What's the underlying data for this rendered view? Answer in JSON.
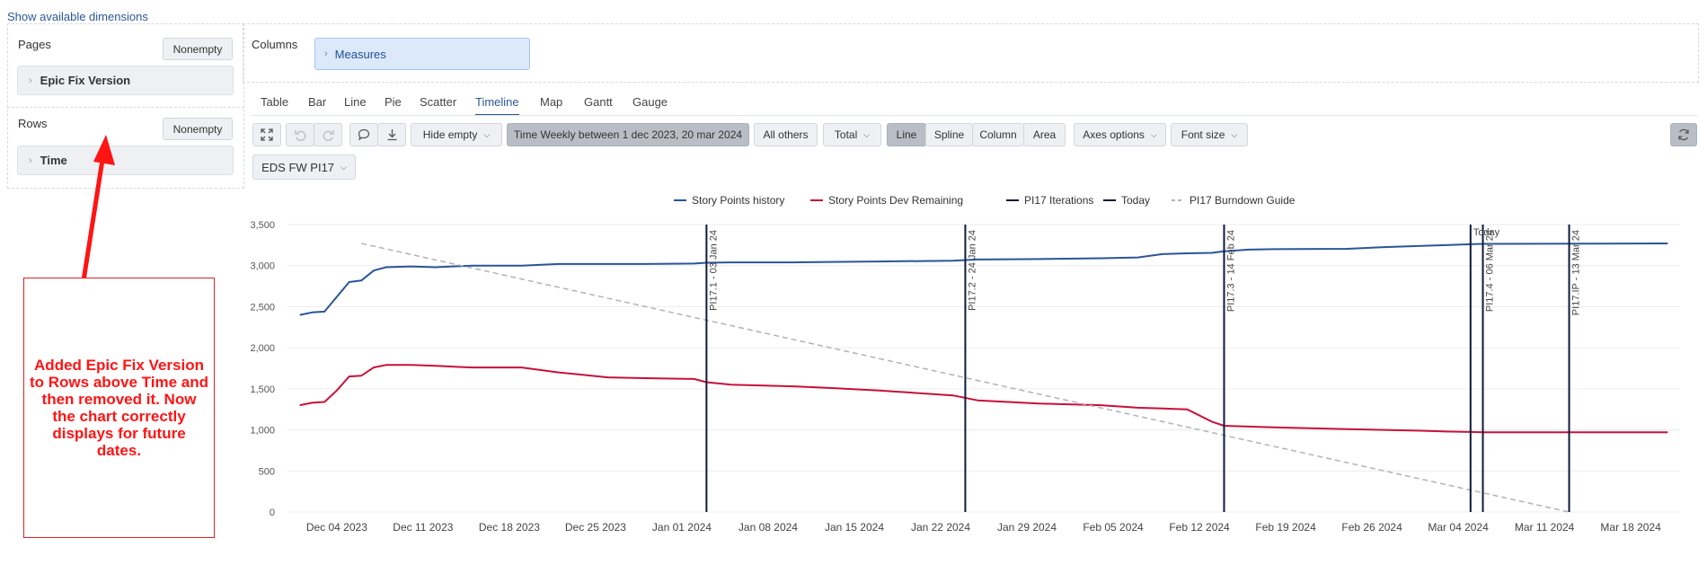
{
  "top_link": "Show available dimensions",
  "pages": {
    "label": "Pages",
    "nonempty": "Nonempty",
    "dimension": "Epic Fix Version"
  },
  "rows": {
    "label": "Rows",
    "nonempty": "Nonempty",
    "dimension": "Time"
  },
  "columns": {
    "label": "Columns",
    "measure": "Measures"
  },
  "tabs": [
    "Table",
    "Bar",
    "Line",
    "Pie",
    "Scatter",
    "Timeline",
    "Map",
    "Gantt",
    "Gauge"
  ],
  "active_tab": "Timeline",
  "toolbar": {
    "hide_empty": "Hide empty",
    "time_filter": "Time Weekly between 1 dec 2023, 20 mar 2024",
    "all_others": "All others",
    "total": "Total",
    "line": "Line",
    "spline": "Spline",
    "column": "Column",
    "area": "Area",
    "axes_options": "Axes options",
    "font_size": "Font size",
    "filter_select": "EDS FW PI17"
  },
  "annotation": "Added Epic Fix Version to Rows above Time and then removed it. Now the chart correctly displays for future dates.",
  "colors": {
    "history": "#2a5599",
    "remaining": "#c8103a",
    "iterations": "#101a3a",
    "today": "#101a3a",
    "guide": "#b0b3bc",
    "annotation": "#ff1414"
  },
  "chart_data": {
    "type": "line",
    "legend": [
      "Story Points history",
      "Story Points Dev Remaining",
      "PI17 Iterations",
      "Today",
      "PI17 Burndown Guide"
    ],
    "legend_position": "top",
    "ylim": [
      0,
      3500
    ],
    "yticks": [
      0,
      500,
      1000,
      1500,
      2000,
      2500,
      3000,
      3500
    ],
    "ytick_labels": [
      "0",
      "500",
      "1,000",
      "1,500",
      "2,000",
      "2,500",
      "3,000",
      "3,500"
    ],
    "xlim": [
      "2023-11-30",
      "2024-03-22"
    ],
    "xticks": [
      "2023-12-04",
      "2023-12-11",
      "2023-12-18",
      "2023-12-25",
      "2024-01-01",
      "2024-01-08",
      "2024-01-15",
      "2024-01-22",
      "2024-01-29",
      "2024-02-05",
      "2024-02-12",
      "2024-02-19",
      "2024-02-26",
      "2024-03-04",
      "2024-03-11",
      "2024-03-18"
    ],
    "xtick_labels": [
      "Dec 04 2023",
      "Dec 11 2023",
      "Dec 18 2023",
      "Dec 25 2023",
      "Jan 01 2024",
      "Jan 08 2024",
      "Jan 15 2024",
      "Jan 22 2024",
      "Jan 29 2024",
      "Feb 05 2024",
      "Feb 12 2024",
      "Feb 19 2024",
      "Feb 26 2024",
      "Mar 04 2024",
      "Mar 11 2024",
      "Mar 18 2024"
    ],
    "grid": true,
    "series": [
      {
        "name": "Story Points history",
        "points": [
          [
            "2023-12-01",
            2400
          ],
          [
            "2023-12-02",
            2430
          ],
          [
            "2023-12-03",
            2440
          ],
          [
            "2023-12-05",
            2800
          ],
          [
            "2023-12-06",
            2820
          ],
          [
            "2023-12-07",
            2940
          ],
          [
            "2023-12-08",
            2980
          ],
          [
            "2023-12-10",
            2990
          ],
          [
            "2023-12-12",
            2980
          ],
          [
            "2023-12-15",
            3000
          ],
          [
            "2023-12-19",
            3000
          ],
          [
            "2023-12-22",
            3020
          ],
          [
            "2023-12-26",
            3020
          ],
          [
            "2023-12-29",
            3020
          ],
          [
            "2024-01-02",
            3025
          ],
          [
            "2024-01-03",
            3035
          ],
          [
            "2024-01-05",
            3040
          ],
          [
            "2024-01-10",
            3040
          ],
          [
            "2024-01-13",
            3045
          ],
          [
            "2024-01-17",
            3050
          ],
          [
            "2024-01-23",
            3060
          ],
          [
            "2024-01-25",
            3075
          ],
          [
            "2024-01-30",
            3080
          ],
          [
            "2024-02-04",
            3090
          ],
          [
            "2024-02-07",
            3100
          ],
          [
            "2024-02-09",
            3140
          ],
          [
            "2024-02-11",
            3150
          ],
          [
            "2024-02-13",
            3155
          ],
          [
            "2024-02-14",
            3175
          ],
          [
            "2024-02-16",
            3195
          ],
          [
            "2024-02-18",
            3200
          ],
          [
            "2024-02-24",
            3205
          ],
          [
            "2024-02-27",
            3225
          ],
          [
            "2024-03-01",
            3240
          ],
          [
            "2024-03-03",
            3250
          ],
          [
            "2024-03-05",
            3260
          ],
          [
            "2024-03-06",
            3265
          ],
          [
            "2024-03-21",
            3270
          ]
        ]
      },
      {
        "name": "Story Points Dev Remaining",
        "points": [
          [
            "2023-12-01",
            1300
          ],
          [
            "2023-12-02",
            1330
          ],
          [
            "2023-12-03",
            1340
          ],
          [
            "2023-12-04",
            1480
          ],
          [
            "2023-12-05",
            1650
          ],
          [
            "2023-12-06",
            1660
          ],
          [
            "2023-12-07",
            1760
          ],
          [
            "2023-12-08",
            1790
          ],
          [
            "2023-12-10",
            1790
          ],
          [
            "2023-12-12",
            1780
          ],
          [
            "2023-12-15",
            1760
          ],
          [
            "2023-12-19",
            1760
          ],
          [
            "2023-12-22",
            1700
          ],
          [
            "2023-12-26",
            1640
          ],
          [
            "2023-12-29",
            1630
          ],
          [
            "2024-01-02",
            1620
          ],
          [
            "2024-01-03",
            1580
          ],
          [
            "2024-01-05",
            1550
          ],
          [
            "2024-01-10",
            1530
          ],
          [
            "2024-01-13",
            1510
          ],
          [
            "2024-01-17",
            1480
          ],
          [
            "2024-01-23",
            1420
          ],
          [
            "2024-01-25",
            1360
          ],
          [
            "2024-01-30",
            1320
          ],
          [
            "2024-02-04",
            1300
          ],
          [
            "2024-02-07",
            1270
          ],
          [
            "2024-02-09",
            1260
          ],
          [
            "2024-02-11",
            1250
          ],
          [
            "2024-02-13",
            1100
          ],
          [
            "2024-02-14",
            1050
          ],
          [
            "2024-02-16",
            1040
          ],
          [
            "2024-02-18",
            1030
          ],
          [
            "2024-02-24",
            1010
          ],
          [
            "2024-02-27",
            1000
          ],
          [
            "2024-03-01",
            990
          ],
          [
            "2024-03-03",
            980
          ],
          [
            "2024-03-05",
            975
          ],
          [
            "2024-03-06",
            970
          ],
          [
            "2024-03-21",
            970
          ]
        ]
      },
      {
        "name": "PI17 Burndown Guide",
        "points": [
          [
            "2023-12-06",
            3270
          ],
          [
            "2024-03-13",
            0
          ]
        ]
      }
    ],
    "vertical_markers": [
      {
        "series": "PI17 Iterations",
        "date": "2024-01-03",
        "label": "PI17.1 - 03 Jan 24"
      },
      {
        "series": "PI17 Iterations",
        "date": "2024-01-24",
        "label": "PI17.2 - 24 Jan 24"
      },
      {
        "series": "PI17 Iterations",
        "date": "2024-02-14",
        "label": "PI17.3 - 14 Feb 24"
      },
      {
        "series": "PI17 Iterations",
        "date": "2024-03-06",
        "label": "PI17.4 - 06 Mar 24"
      },
      {
        "series": "PI17 Iterations",
        "date": "2024-03-13",
        "label": "PI17.IP - 13 Mar 24"
      },
      {
        "series": "Today",
        "date": "2024-03-05",
        "label": "Today"
      }
    ]
  }
}
